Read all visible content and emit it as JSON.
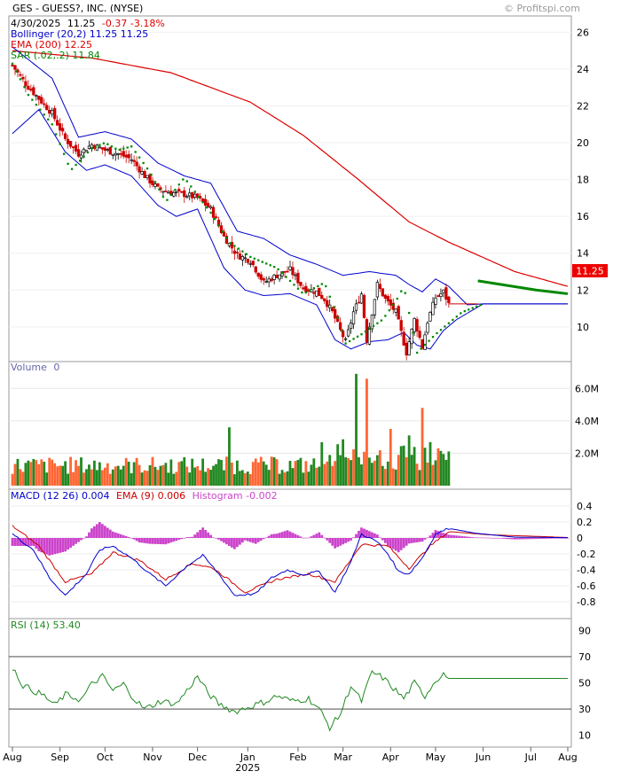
{
  "header": {
    "title": "GES - GUESS?, INC. (NYSE)",
    "watermark": "© Profitspi.com",
    "quote_date": "4/30/2025",
    "quote_price": "11.25",
    "quote_change": "-0.37 -3.18%",
    "bollinger": "Bollinger (20,2) 11.25 11.25",
    "ema200": "EMA (200) 12.25",
    "sar": "SAR (.02,.2) 11.84",
    "last_price_tag": "11.25"
  },
  "colors": {
    "price_up": "#000000",
    "price_down": "#cc0000",
    "bollinger": "#0000cc",
    "ema200": "#dd0000",
    "sar": "#008800",
    "volume_up": "#228822",
    "volume_down": "#ff6633",
    "macd": "#0000cc",
    "macd_signal": "#cc0000",
    "histogram": "#cc44cc",
    "rsi": "#228822",
    "price_tag_bg": "#ee0000",
    "panel_label": "#6666aa"
  },
  "chart_data": [
    {
      "type": "line",
      "panel": "price",
      "y_ticks": [
        "26",
        "24",
        "22",
        "20",
        "18",
        "16",
        "14",
        "12",
        "10"
      ],
      "ylim": [
        8.5,
        26.5
      ],
      "x_labels": [
        "Aug",
        "Sep",
        "Oct",
        "Nov",
        "Dec",
        "Jan",
        "Feb",
        "Mar",
        "Apr",
        "May",
        "Jun",
        "Jul",
        "Aug"
      ],
      "x_year_label": "2025",
      "close_anchors": [
        [
          0,
          24.2
        ],
        [
          5,
          23.2
        ],
        [
          10,
          22.4
        ],
        [
          15,
          21.6
        ],
        [
          20,
          20.2
        ],
        [
          25,
          19.4
        ],
        [
          30,
          19.9
        ],
        [
          35,
          19.6
        ],
        [
          40,
          19.4
        ],
        [
          45,
          19.1
        ],
        [
          50,
          18.2
        ],
        [
          55,
          17.5
        ],
        [
          60,
          17.3
        ],
        [
          65,
          17.2
        ],
        [
          70,
          17.0
        ],
        [
          75,
          16.4
        ],
        [
          80,
          14.9
        ],
        [
          85,
          13.9
        ],
        [
          90,
          13.6
        ],
        [
          95,
          12.4
        ],
        [
          100,
          12.8
        ],
        [
          105,
          13.1
        ],
        [
          110,
          12.1
        ],
        [
          115,
          11.9
        ],
        [
          118,
          11.5
        ],
        [
          121,
          10.8
        ],
        [
          124,
          9.8
        ],
        [
          126,
          9.2
        ],
        [
          129,
          10.8
        ],
        [
          132,
          11.8
        ],
        [
          134,
          9.3
        ],
        [
          138,
          12.3
        ],
        [
          141,
          11.5
        ],
        [
          145,
          10.8
        ],
        [
          149,
          8.6
        ],
        [
          152,
          10.4
        ],
        [
          155,
          8.9
        ],
        [
          157,
          10.3
        ],
        [
          160,
          11.6
        ],
        [
          163,
          11.9
        ],
        [
          165,
          11.25
        ]
      ],
      "ema200_anchors": [
        [
          0,
          25.0
        ],
        [
          30,
          24.6
        ],
        [
          60,
          23.8
        ],
        [
          90,
          22.2
        ],
        [
          110,
          20.4
        ],
        [
          130,
          18.1
        ],
        [
          150,
          15.7
        ],
        [
          165,
          14.6
        ],
        [
          190,
          13.0
        ],
        [
          210,
          12.2
        ]
      ],
      "boll_upper_anchors": [
        [
          0,
          25.2
        ],
        [
          15,
          23.5
        ],
        [
          25,
          20.3
        ],
        [
          35,
          20.6
        ],
        [
          45,
          20.2
        ],
        [
          55,
          18.9
        ],
        [
          65,
          18.2
        ],
        [
          75,
          17.8
        ],
        [
          85,
          15.2
        ],
        [
          95,
          14.8
        ],
        [
          105,
          13.9
        ],
        [
          115,
          13.4
        ],
        [
          125,
          12.8
        ],
        [
          135,
          13.0
        ],
        [
          145,
          12.8
        ],
        [
          150,
          12.3
        ],
        [
          155,
          11.9
        ],
        [
          160,
          12.6
        ],
        [
          165,
          12.2
        ],
        [
          172,
          11.2
        ],
        [
          178,
          11.25
        ],
        [
          210,
          11.25
        ]
      ],
      "boll_lower_anchors": [
        [
          0,
          20.5
        ],
        [
          10,
          21.8
        ],
        [
          20,
          19.5
        ],
        [
          28,
          18.5
        ],
        [
          35,
          18.8
        ],
        [
          45,
          18.2
        ],
        [
          55,
          16.6
        ],
        [
          62,
          16.0
        ],
        [
          70,
          16.4
        ],
        [
          80,
          13.2
        ],
        [
          88,
          12.0
        ],
        [
          95,
          11.7
        ],
        [
          105,
          11.8
        ],
        [
          115,
          11.2
        ],
        [
          122,
          9.3
        ],
        [
          128,
          8.8
        ],
        [
          135,
          9.2
        ],
        [
          142,
          9.3
        ],
        [
          148,
          9.7
        ],
        [
          153,
          9.0
        ],
        [
          158,
          8.8
        ],
        [
          163,
          9.8
        ],
        [
          168,
          10.4
        ],
        [
          178,
          11.25
        ],
        [
          210,
          11.25
        ]
      ],
      "sar_anchors": [
        [
          0,
          24.3
        ],
        [
          6,
          22.6
        ],
        [
          15,
          21.0
        ],
        [
          22,
          18.5
        ],
        [
          30,
          19.7
        ],
        [
          35,
          20.0
        ],
        [
          40,
          19.6
        ],
        [
          45,
          19.8
        ],
        [
          52,
          18.4
        ],
        [
          58,
          16.8
        ],
        [
          65,
          18.1
        ],
        [
          75,
          16.2
        ],
        [
          82,
          14.6
        ],
        [
          90,
          13.8
        ],
        [
          100,
          13.2
        ],
        [
          110,
          11.8
        ],
        [
          118,
          12.4
        ],
        [
          123,
          10.5
        ],
        [
          126,
          9.1
        ],
        [
          132,
          9.6
        ],
        [
          140,
          10.4
        ],
        [
          145,
          11.4
        ],
        [
          148,
          12.2
        ],
        [
          153,
          8.6
        ],
        [
          160,
          9.6
        ],
        [
          170,
          10.8
        ],
        [
          178,
          11.25
        ],
        [
          210,
          11.25
        ]
      ],
      "sar_forecast": [
        [
          176,
          12.5
        ],
        [
          198,
          12.0
        ],
        [
          210,
          11.8
        ]
      ],
      "last_price": 11.25
    },
    {
      "type": "bar",
      "panel": "volume",
      "label": "Volume",
      "label_value": "0",
      "y_ticks": [
        "6.0M",
        "4.0M",
        "2.0M"
      ],
      "ylim": [
        0,
        7.0
      ],
      "unit": "M",
      "peaks": [
        [
          130,
          6.9
        ],
        [
          134,
          6.6
        ],
        [
          143,
          3.5
        ],
        [
          150,
          3.1
        ],
        [
          155,
          4.8
        ],
        [
          82,
          3.6
        ]
      ]
    },
    {
      "type": "line",
      "panel": "macd",
      "label": "MACD (12 26) 0.004",
      "label_signal": "EMA (9) 0.006",
      "label_hist": "Histogram -0.002",
      "y_ticks": [
        "0.4",
        "0.2",
        "0",
        "-0.2",
        "-0.4",
        "-0.6",
        "-0.8"
      ],
      "ylim": [
        -0.9,
        0.5
      ],
      "macd_anchors": [
        [
          0,
          0.05
        ],
        [
          8,
          -0.15
        ],
        [
          14,
          -0.5
        ],
        [
          20,
          -0.72
        ],
        [
          28,
          -0.45
        ],
        [
          33,
          -0.15
        ],
        [
          38,
          -0.1
        ],
        [
          45,
          -0.25
        ],
        [
          52,
          -0.45
        ],
        [
          58,
          -0.6
        ],
        [
          66,
          -0.35
        ],
        [
          72,
          -0.22
        ],
        [
          78,
          -0.45
        ],
        [
          84,
          -0.72
        ],
        [
          92,
          -0.7
        ],
        [
          98,
          -0.5
        ],
        [
          104,
          -0.4
        ],
        [
          110,
          -0.46
        ],
        [
          116,
          -0.42
        ],
        [
          122,
          -0.68
        ],
        [
          128,
          -0.3
        ],
        [
          132,
          0.05
        ],
        [
          138,
          -0.05
        ],
        [
          142,
          -0.2
        ],
        [
          146,
          -0.42
        ],
        [
          150,
          -0.45
        ],
        [
          155,
          -0.25
        ],
        [
          160,
          0.05
        ],
        [
          165,
          0.12
        ],
        [
          175,
          0.06
        ],
        [
          190,
          0.01
        ],
        [
          210,
          0.004
        ]
      ],
      "signal_anchors": [
        [
          0,
          0.15
        ],
        [
          10,
          -0.1
        ],
        [
          20,
          -0.55
        ],
        [
          30,
          -0.45
        ],
        [
          38,
          -0.18
        ],
        [
          48,
          -0.28
        ],
        [
          58,
          -0.52
        ],
        [
          68,
          -0.32
        ],
        [
          76,
          -0.38
        ],
        [
          88,
          -0.68
        ],
        [
          100,
          -0.52
        ],
        [
          112,
          -0.45
        ],
        [
          122,
          -0.55
        ],
        [
          132,
          -0.08
        ],
        [
          142,
          -0.1
        ],
        [
          150,
          -0.38
        ],
        [
          158,
          -0.1
        ],
        [
          165,
          0.08
        ],
        [
          180,
          0.04
        ],
        [
          210,
          0.006
        ]
      ]
    },
    {
      "type": "line",
      "panel": "rsi",
      "label": "RSI (14) 53.40",
      "y_ticks": [
        "90",
        "70",
        "50",
        "30",
        "10"
      ],
      "ylim": [
        5,
        95
      ],
      "levels": [
        70,
        30
      ],
      "rsi_anchors": [
        [
          0,
          62
        ],
        [
          4,
          48
        ],
        [
          8,
          44
        ],
        [
          12,
          40
        ],
        [
          16,
          33
        ],
        [
          20,
          41
        ],
        [
          26,
          37
        ],
        [
          30,
          49
        ],
        [
          34,
          55
        ],
        [
          38,
          44
        ],
        [
          42,
          49
        ],
        [
          46,
          38
        ],
        [
          50,
          30
        ],
        [
          56,
          36
        ],
        [
          62,
          34
        ],
        [
          66,
          44
        ],
        [
          70,
          55
        ],
        [
          74,
          42
        ],
        [
          78,
          34
        ],
        [
          84,
          28
        ],
        [
          90,
          32
        ],
        [
          96,
          36
        ],
        [
          100,
          40
        ],
        [
          106,
          36
        ],
        [
          112,
          38
        ],
        [
          116,
          30
        ],
        [
          120,
          16
        ],
        [
          124,
          26
        ],
        [
          128,
          48
        ],
        [
          132,
          36
        ],
        [
          136,
          58
        ],
        [
          140,
          54
        ],
        [
          144,
          46
        ],
        [
          148,
          38
        ],
        [
          152,
          50
        ],
        [
          156,
          40
        ],
        [
          160,
          52
        ],
        [
          163,
          57
        ],
        [
          165,
          53.4
        ],
        [
          210,
          53.4
        ]
      ]
    }
  ]
}
